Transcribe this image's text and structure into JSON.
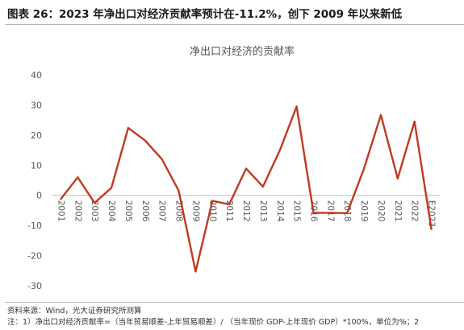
{
  "figure_title": "图表 26：2023 年净出口对经济贡献率预计在-11.2%，创下 2009 年以来新低",
  "source_text": "资料来源：Wind，光大证券研究所测算",
  "note_text": "注：1）净出口对经济贡献率=（当年贸易顺差-上年贸易顺差）/ （当年现价 GDP-上年现价 GDP）*100%，单位为%；2",
  "chart_data": {
    "type": "line",
    "title": "净出口对经济的贡献率",
    "xlabel": "",
    "ylabel": "",
    "categories": [
      "2001",
      "2002",
      "2003",
      "2004",
      "2005",
      "2006",
      "2007",
      "2008",
      "2009",
      "2010",
      "2011",
      "2012",
      "2013",
      "2014",
      "2015",
      "2016",
      "2017",
      "2018",
      "2019",
      "2020",
      "2021",
      "2022",
      "E2023"
    ],
    "series": [
      {
        "values": [
          -1.2,
          6.0,
          -2.5,
          2.5,
          22.4,
          18.2,
          12.0,
          1.5,
          -25.3,
          -1.8,
          -3.0,
          8.9,
          2.9,
          14.9,
          29.5,
          -5.8,
          -5.8,
          -5.9,
          8.9,
          26.7,
          5.6,
          24.5,
          -11.2
        ],
        "color": "#c0391f"
      }
    ],
    "ylim": [
      -30,
      40
    ],
    "yticks": [
      -30,
      -20,
      -10,
      0,
      10,
      20,
      30,
      40
    ],
    "grid": false,
    "legend": "none",
    "axis_color": "#bfbfbf",
    "label_color": "#555555"
  }
}
